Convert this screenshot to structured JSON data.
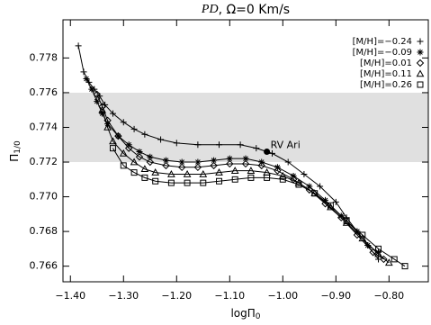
{
  "chart_data": {
    "type": "line",
    "title": {
      "italic": "PD",
      "rest": ", Ω=0 Km/s"
    },
    "xlabel": "logΠ",
    "xlabel_sub": "0",
    "ylabel": "Π",
    "ylabel_sub": "1/0",
    "xlim": [
      -1.414,
      -0.726
    ],
    "ylim": [
      0.7651,
      0.7802
    ],
    "xticks": [
      {
        "value": -1.4,
        "label": "−1.40"
      },
      {
        "value": -1.3,
        "label": "−1.30"
      },
      {
        "value": -1.2,
        "label": "−1.20"
      },
      {
        "value": -1.1,
        "label": "−1.10"
      },
      {
        "value": -1.0,
        "label": "−1.00"
      },
      {
        "value": -0.9,
        "label": "−0.90"
      },
      {
        "value": -0.8,
        "label": "−0.80"
      }
    ],
    "yticks": [
      {
        "value": 0.766,
        "label": "0.766"
      },
      {
        "value": 0.768,
        "label": "0.768"
      },
      {
        "value": 0.77,
        "label": "0.770"
      },
      0.772,
      0.774,
      0.776,
      0.778
    ],
    "band": [
      0.772,
      0.776
    ],
    "band_color": "#e0e0e0",
    "annotation": {
      "text": "RV Ari",
      "x": -1.03,
      "y": 0.7726
    },
    "legend": "upper right",
    "series": [
      {
        "name": "[M/H]=−0.24",
        "marker": "plus",
        "color": "#000000",
        "x": [
          -1.385,
          -1.375,
          -1.365,
          -1.355,
          -1.345,
          -1.335,
          -1.32,
          -1.3,
          -1.28,
          -1.26,
          -1.23,
          -1.2,
          -1.16,
          -1.12,
          -1.08,
          -1.05,
          -1.02,
          -0.99,
          -0.96,
          -0.93,
          -0.9,
          -0.88,
          -0.86,
          -0.84,
          -0.82
        ],
        "values": [
          0.7787,
          0.7772,
          0.7766,
          0.7762,
          0.7758,
          0.7753,
          0.7748,
          0.7743,
          0.7739,
          0.7736,
          0.7733,
          0.7731,
          0.773,
          0.773,
          0.773,
          0.7728,
          0.7725,
          0.772,
          0.7713,
          0.7706,
          0.7697,
          0.7688,
          0.768,
          0.7672,
          0.7664
        ]
      },
      {
        "name": "[M/H]=−0.09",
        "marker": "star",
        "color": "#000000",
        "x": [
          -1.37,
          -1.36,
          -1.35,
          -1.34,
          -1.33,
          -1.31,
          -1.29,
          -1.27,
          -1.25,
          -1.22,
          -1.19,
          -1.16,
          -1.13,
          -1.1,
          -1.07,
          -1.04,
          -1.01,
          -0.98,
          -0.95,
          -0.92,
          -0.89,
          -0.86,
          -0.84,
          -0.82
        ],
        "values": [
          0.7768,
          0.7762,
          0.7755,
          0.7748,
          0.7742,
          0.7735,
          0.773,
          0.7726,
          0.7723,
          0.7721,
          0.772,
          0.772,
          0.7721,
          0.7722,
          0.7722,
          0.772,
          0.7717,
          0.7712,
          0.7706,
          0.7698,
          0.7689,
          0.768,
          0.7672,
          0.7668
        ]
      },
      {
        "name": "[M/H]=0.01",
        "marker": "diamond",
        "color": "#000000",
        "x": [
          -1.35,
          -1.34,
          -1.33,
          -1.31,
          -1.29,
          -1.27,
          -1.25,
          -1.22,
          -1.19,
          -1.16,
          -1.13,
          -1.1,
          -1.07,
          -1.04,
          -1.01,
          -0.98,
          -0.95,
          -0.92,
          -0.89,
          -0.86,
          -0.83,
          -0.81
        ],
        "values": [
          0.7759,
          0.7752,
          0.7744,
          0.7735,
          0.7728,
          0.7723,
          0.772,
          0.7718,
          0.7717,
          0.7717,
          0.7718,
          0.7719,
          0.7719,
          0.7718,
          0.7715,
          0.771,
          0.7704,
          0.7696,
          0.7688,
          0.7678,
          0.7668,
          0.7664
        ]
      },
      {
        "name": "[M/H]=0.11",
        "marker": "triangle",
        "color": "#000000",
        "x": [
          -1.34,
          -1.33,
          -1.32,
          -1.3,
          -1.28,
          -1.26,
          -1.24,
          -1.21,
          -1.18,
          -1.15,
          -1.12,
          -1.09,
          -1.06,
          -1.03,
          -1.0,
          -0.97,
          -0.94,
          -0.91,
          -0.88,
          -0.85,
          -0.82,
          -0.8
        ],
        "values": [
          0.775,
          0.774,
          0.7732,
          0.7725,
          0.772,
          0.7716,
          0.7714,
          0.7713,
          0.7713,
          0.7713,
          0.7714,
          0.7715,
          0.7715,
          0.7714,
          0.7712,
          0.7708,
          0.7702,
          0.7694,
          0.7685,
          0.7676,
          0.7667,
          0.7662
        ]
      },
      {
        "name": "[M/H]=0.26",
        "marker": "square",
        "color": "#000000",
        "x": [
          -1.32,
          -1.3,
          -1.28,
          -1.26,
          -1.24,
          -1.21,
          -1.18,
          -1.15,
          -1.12,
          -1.09,
          -1.06,
          -1.03,
          -1.0,
          -0.97,
          -0.94,
          -0.91,
          -0.88,
          -0.85,
          -0.82,
          -0.79,
          -0.77
        ],
        "values": [
          0.7728,
          0.7718,
          0.7714,
          0.7711,
          0.7709,
          0.7708,
          0.7708,
          0.7708,
          0.7709,
          0.771,
          0.7711,
          0.7711,
          0.771,
          0.7707,
          0.7702,
          0.7695,
          0.7686,
          0.7678,
          0.767,
          0.7664,
          0.766
        ]
      }
    ]
  }
}
